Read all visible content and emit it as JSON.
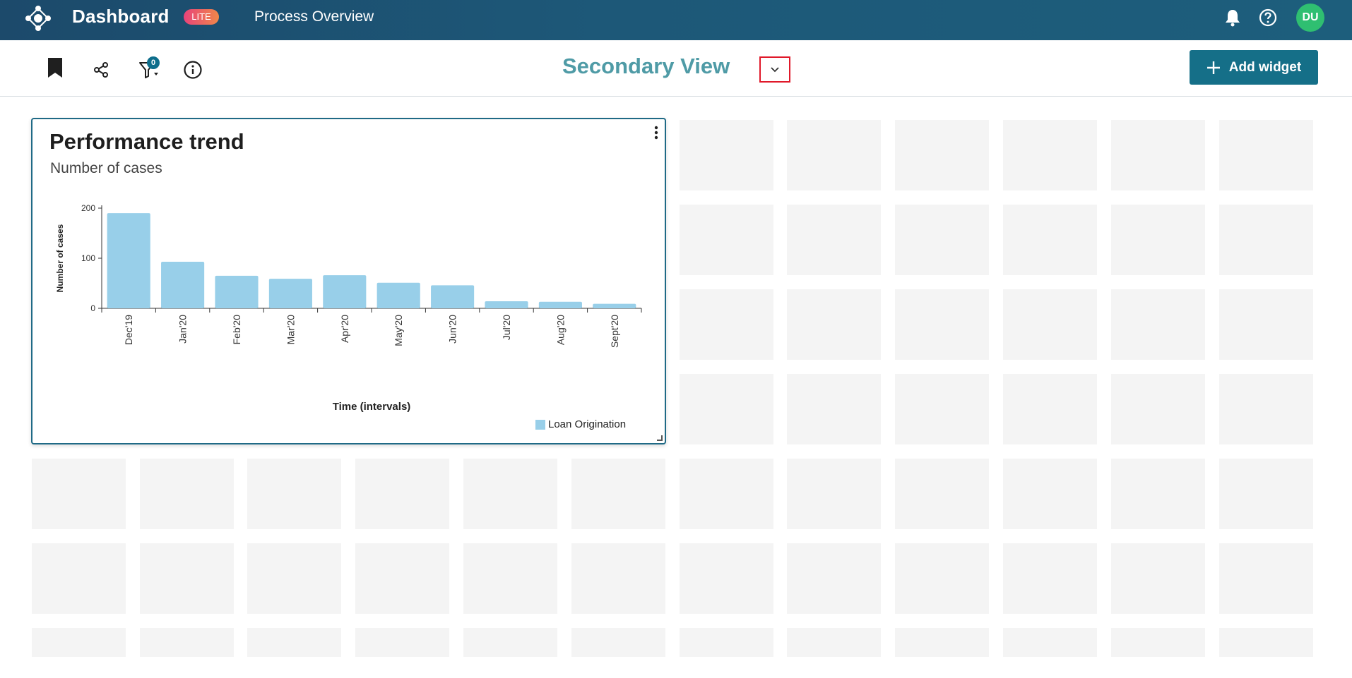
{
  "header": {
    "app_title": "Dashboard",
    "badge": "LITE",
    "breadcrumb": "Process Overview",
    "avatar_initials": "DU"
  },
  "toolbar": {
    "filter_count": "0",
    "view_title": "Secondary View",
    "add_widget_label": "Add widget",
    "icons": [
      "bookmark-icon",
      "share-icon",
      "filter-icon",
      "info-icon"
    ]
  },
  "widget": {
    "title": "Performance trend",
    "subtitle": "Number of cases"
  },
  "colors": {
    "header": "#1d5878",
    "accent": "#156f88",
    "view_title": "#4f9ba6",
    "bar": "#98cfe9",
    "avatar": "#2fbf71",
    "highlight": "#e0192a"
  },
  "chart_data": {
    "type": "bar",
    "categories": [
      "Dec'19",
      "Jan'20",
      "Feb'20",
      "Mar'20",
      "Apr'20",
      "May'20",
      "Jun'20",
      "Jul'20",
      "Aug'20",
      "Sept'20"
    ],
    "series": [
      {
        "name": "Loan Origination",
        "values": [
          190,
          93,
          65,
          59,
          66,
          51,
          46,
          14,
          13,
          9
        ]
      }
    ],
    "ylabel": "Number of cases",
    "xlabel": "Time (intervals)",
    "ylim": [
      0,
      200
    ],
    "yticks": [
      0,
      100,
      200
    ],
    "legend": "bottom-right",
    "grid": false
  }
}
